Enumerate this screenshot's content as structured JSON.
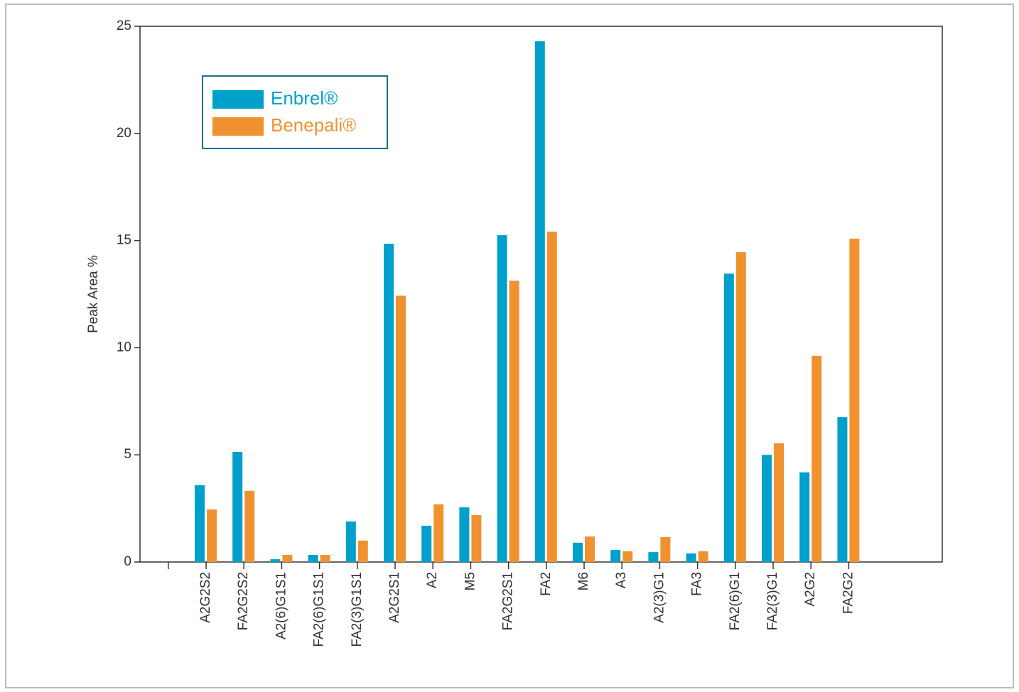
{
  "chart_data": {
    "type": "bar",
    "y_label": "Peak Area %",
    "categories": [
      null,
      "A2G2S2",
      "FA2G2S2",
      "A2(6)G1S1",
      "FA2(6)G1S1",
      "FA2(3)G1S1",
      "A2G2S1",
      "A2",
      "M5",
      "FA2G2S1",
      "FA2",
      "M6",
      "A3",
      "A2(3)G1",
      "FA3",
      "FA2(6)G1",
      "FA2(3)G1",
      "A2G2",
      "FA2G2"
    ],
    "series": [
      {
        "name": "Enbrel®",
        "color": "#00a0cc",
        "values": [
          null,
          3.58,
          5.14,
          0.13,
          0.33,
          1.89,
          14.85,
          1.69,
          2.55,
          15.25,
          24.3,
          0.9,
          0.56,
          0.46,
          0.4,
          13.46,
          5.0,
          4.18,
          6.76
        ]
      },
      {
        "name": "Benepali®",
        "color": "#f0922f",
        "values": [
          null,
          2.45,
          3.32,
          0.33,
          0.33,
          1.0,
          12.43,
          2.69,
          2.19,
          13.13,
          15.42,
          1.19,
          0.5,
          1.16,
          0.5,
          14.46,
          5.54,
          9.62,
          15.09
        ]
      }
    ],
    "ylim": [
      0,
      25
    ],
    "yticks": [
      0,
      5,
      10,
      15,
      20,
      25
    ],
    "legend": "upper left",
    "legend_border_color": "#1a6e8a"
  }
}
